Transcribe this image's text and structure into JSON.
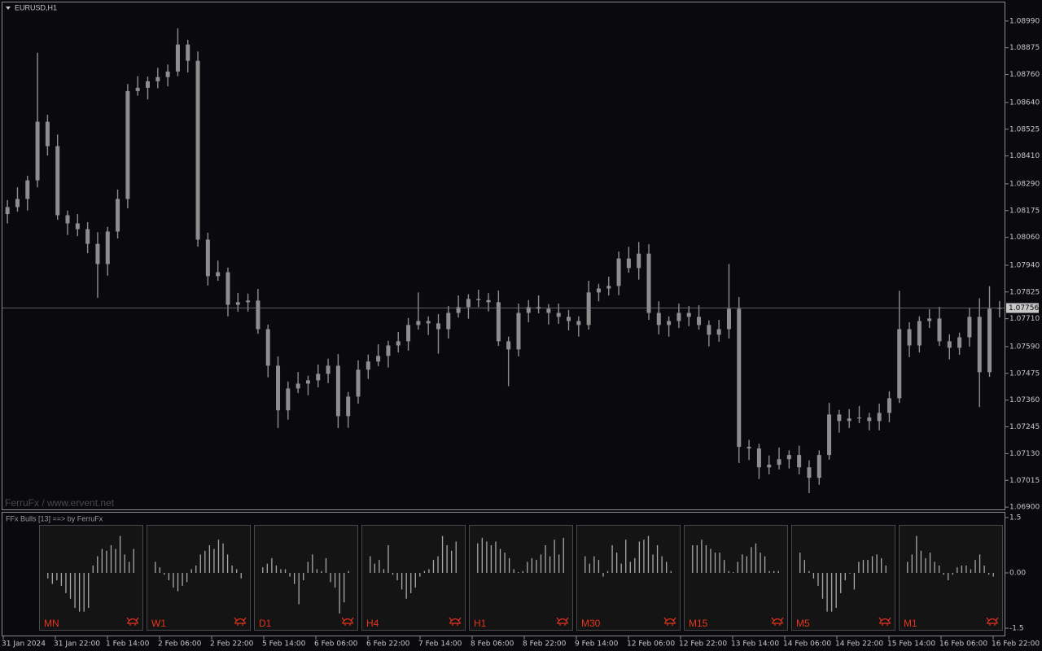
{
  "chart_data": [
    {
      "type": "candlestick",
      "title": "EURUSD,H1",
      "watermark": "FerruFx / www.ervent.net",
      "color": "#8e8e8e",
      "current_price": 1.07756,
      "ylim": [
        1.0689,
        1.0907
      ],
      "yticks": [
        {
          "value": 1.069,
          "label": "1.06900"
        },
        {
          "value": 1.07015,
          "label": "1.07015"
        },
        {
          "value": 1.0713,
          "label": "1.07130"
        },
        {
          "value": 1.07245,
          "label": "1.07245"
        },
        {
          "value": 1.0736,
          "label": "1.07360"
        },
        {
          "value": 1.07475,
          "label": "1.07475"
        },
        {
          "value": 1.0759,
          "label": "1.07590"
        },
        {
          "value": 1.0771,
          "label": "1.07710"
        },
        {
          "value": 1.07825,
          "label": "1.07825"
        },
        {
          "value": 1.0794,
          "label": "1.07940"
        },
        {
          "value": 1.0806,
          "label": "1.08060"
        },
        {
          "value": 1.08175,
          "label": "1.08175"
        },
        {
          "value": 1.0829,
          "label": "1.08290"
        },
        {
          "value": 1.0841,
          "label": "1.08410"
        },
        {
          "value": 1.08525,
          "label": "1.08525"
        },
        {
          "value": 1.0864,
          "label": "1.08640"
        },
        {
          "value": 1.0876,
          "label": "1.08760"
        },
        {
          "value": 1.08875,
          "label": "1.08875"
        },
        {
          "value": 1.0899,
          "label": "1.08990"
        }
      ],
      "x_labels": [
        "31 Jan 2024",
        "31 Jan 22:00",
        "1 Feb 14:00",
        "2 Feb 06:00",
        "2 Feb 22:00",
        "5 Feb 14:00",
        "6 Feb 06:00",
        "6 Feb 22:00",
        "7 Feb 14:00",
        "8 Feb 06:00",
        "8 Feb 22:00",
        "9 Feb 14:00",
        "12 Feb 06:00",
        "12 Feb 22:00",
        "13 Feb 14:00",
        "14 Feb 06:00",
        "14 Feb 22:00",
        "15 Feb 14:00",
        "16 Feb 06:00",
        "16 Feb 22:00"
      ],
      "open": [
        1.0816,
        1.0819,
        1.08225,
        1.08305,
        1.08557,
        1.08452,
        1.08155,
        1.0812,
        1.08095,
        1.08032,
        1.07945,
        1.08085,
        1.08225,
        1.08689,
        1.08703,
        1.08731,
        1.08749,
        1.08773,
        1.08889,
        1.08819,
        1.0805,
        1.07893,
        1.0791,
        1.0777,
        1.07781,
        1.07788,
        1.07665,
        1.07508,
        1.07316,
        1.0741,
        1.07431,
        1.07445,
        1.07473,
        1.07508,
        1.07291,
        1.07375,
        1.07491,
        1.07526,
        1.0755,
        1.07595,
        1.07613,
        1.07683,
        1.077,
        1.0769,
        1.07665,
        1.07735,
        1.0776,
        1.07795,
        1.0779,
        1.07781,
        1.07613,
        1.07578,
        1.07735,
        1.0776,
        1.07753,
        1.07735,
        1.07718,
        1.077,
        1.07683,
        1.07823,
        1.0784,
        1.07851,
        1.07969,
        1.07928,
        1.0799,
        1.07735,
        1.07683,
        1.077,
        1.07735,
        1.07718,
        1.07683,
        1.07641,
        1.07665,
        1.07753,
        1.07159,
        1.07152,
        1.07071,
        1.07082,
        1.07106,
        1.07124,
        1.07071,
        1.07026,
        1.07124,
        1.07298,
        1.0727,
        1.07281,
        1.07285,
        1.0727,
        1.07305,
        1.07368,
        1.07665,
        1.07595,
        1.077,
        1.07711,
        1.07613,
        1.07585,
        1.0763,
        1.07718,
        1.0748,
        1.07753
      ],
      "high": [
        1.0822,
        1.08275,
        1.08325,
        1.08854,
        1.08587,
        1.08502,
        1.08175,
        1.0816,
        1.08125,
        1.08082,
        1.08105,
        1.08265,
        1.08719,
        1.08753,
        1.08751,
        1.08789,
        1.08803,
        1.08959,
        1.08909,
        1.08859,
        1.0808,
        1.0796,
        1.0793,
        1.07821,
        1.07818,
        1.07838,
        1.07685,
        1.07548,
        1.0744,
        1.07481,
        1.07465,
        1.07513,
        1.07538,
        1.07558,
        1.07395,
        1.07531,
        1.07556,
        1.076,
        1.07615,
        1.07653,
        1.07713,
        1.07823,
        1.0772,
        1.0773,
        1.07765,
        1.0781,
        1.07815,
        1.07835,
        1.0782,
        1.07831,
        1.07633,
        1.07775,
        1.0779,
        1.0781,
        1.07773,
        1.07775,
        1.07748,
        1.0772,
        1.07873,
        1.0786,
        1.07891,
        1.07999,
        1.08019,
        1.0804,
        1.0803,
        1.07785,
        1.0772,
        1.07775,
        1.07765,
        1.07768,
        1.07703,
        1.07705,
        1.07945,
        1.07803,
        1.07189,
        1.07172,
        1.07122,
        1.07156,
        1.07144,
        1.07164,
        1.07101,
        1.07144,
        1.07348,
        1.07318,
        1.07321,
        1.07335,
        1.07305,
        1.07345,
        1.07398,
        1.0783,
        1.07695,
        1.0772,
        1.07751,
        1.07761,
        1.07643,
        1.0765,
        1.07758,
        1.07798,
        1.0785,
        1.07786
      ],
      "low": [
        1.0812,
        1.0817,
        1.08175,
        1.08275,
        1.08412,
        1.08135,
        1.0807,
        1.08065,
        1.07992,
        1.078,
        1.07895,
        1.08055,
        1.08185,
        1.08669,
        1.08653,
        1.08701,
        1.08709,
        1.08753,
        1.08769,
        1.0802,
        1.07853,
        1.07873,
        1.0772,
        1.0774,
        1.07741,
        1.07645,
        1.07458,
        1.0724,
        1.07276,
        1.0739,
        1.07381,
        1.07415,
        1.07433,
        1.0724,
        1.07241,
        1.07345,
        1.07451,
        1.07506,
        1.075,
        1.07565,
        1.07573,
        1.07663,
        1.0764,
        1.0756,
        1.07625,
        1.07715,
        1.0771,
        1.0776,
        1.07741,
        1.07593,
        1.0742,
        1.07548,
        1.07695,
        1.07733,
        1.07685,
        1.07688,
        1.0766,
        1.07633,
        1.07663,
        1.07785,
        1.0781,
        1.07811,
        1.07908,
        1.07878,
        1.07705,
        1.07643,
        1.07633,
        1.0767,
        1.07678,
        1.07663,
        1.07591,
        1.07611,
        1.07625,
        1.0709,
        1.07102,
        1.07021,
        1.07041,
        1.07062,
        1.07066,
        1.07041,
        1.0696,
        1.06996,
        1.07104,
        1.0722,
        1.0724,
        1.07261,
        1.0723,
        1.0723,
        1.07265,
        1.07348,
        1.07545,
        1.07565,
        1.0767,
        1.07593,
        1.07535,
        1.07555,
        1.0759,
        1.0733,
        1.0746,
        1.07716
      ],
      "close": [
        1.0819,
        1.08225,
        1.08305,
        1.08557,
        1.08452,
        1.08155,
        1.0812,
        1.08095,
        1.08032,
        1.07945,
        1.08085,
        1.08225,
        1.08689,
        1.08703,
        1.08731,
        1.08749,
        1.08773,
        1.08889,
        1.08819,
        1.0805,
        1.07893,
        1.0791,
        1.0777,
        1.07781,
        1.07788,
        1.07665,
        1.07508,
        1.07316,
        1.0741,
        1.07431,
        1.07445,
        1.07473,
        1.07508,
        1.07291,
        1.07375,
        1.07491,
        1.07526,
        1.0755,
        1.07595,
        1.07613,
        1.07683,
        1.077,
        1.0769,
        1.07665,
        1.07735,
        1.0776,
        1.07795,
        1.0779,
        1.07781,
        1.07613,
        1.07578,
        1.07735,
        1.0776,
        1.07753,
        1.07735,
        1.07718,
        1.077,
        1.07683,
        1.07823,
        1.0784,
        1.07851,
        1.07969,
        1.07928,
        1.0799,
        1.07735,
        1.07683,
        1.077,
        1.07735,
        1.07718,
        1.07683,
        1.07641,
        1.07665,
        1.07753,
        1.07159,
        1.07152,
        1.07071,
        1.07082,
        1.07106,
        1.07124,
        1.07071,
        1.07026,
        1.07124,
        1.07298,
        1.0727,
        1.07281,
        1.07285,
        1.0727,
        1.07305,
        1.07368,
        1.07665,
        1.07595,
        1.077,
        1.07711,
        1.07613,
        1.07585,
        1.0763,
        1.07718,
        1.0748,
        1.07753,
        1.07756
      ]
    },
    {
      "type": "bar",
      "title": "FFx Bulls [13] ==> by FerruFx",
      "color": "#a8a8a8",
      "label_color": "#e8331c",
      "ylim": [
        -1.5,
        1.5
      ],
      "yticks": [
        1.5,
        {
          "value": 0,
          "label": "0.00"
        },
        -1.5
      ],
      "panels": [
        {
          "name": "MN",
          "values": [
            -0.15,
            -0.3,
            -0.2,
            -0.35,
            -0.55,
            -0.7,
            -0.95,
            -1.05,
            -1.05,
            -0.95,
            0.2,
            0.45,
            0.65,
            0.6,
            0.75,
            0.65,
            1.0,
            0.5,
            0.3,
            0.65
          ]
        },
        {
          "name": "W1",
          "values": [
            0.3,
            0.15,
            -0.05,
            -0.2,
            -0.4,
            -0.5,
            -0.35,
            -0.25,
            0.1,
            0.2,
            0.5,
            0.6,
            0.75,
            0.65,
            0.9,
            0.8,
            0.5,
            0.2,
            0.1,
            -0.15
          ]
        },
        {
          "name": "D1",
          "values": [
            0.15,
            0.25,
            0.4,
            0.2,
            0.1,
            0.1,
            -0.1,
            -0.3,
            -0.85,
            -0.2,
            0.3,
            0.5,
            0.1,
            0.05,
            0.4,
            -0.25,
            -0.4,
            -1.1,
            -0.8,
            0.05
          ]
        },
        {
          "name": "H4",
          "values": [
            0.45,
            0.25,
            0.35,
            0.1,
            0.75,
            -0.05,
            -0.2,
            -0.45,
            -0.7,
            -0.55,
            -0.4,
            -0.1,
            0.05,
            0.1,
            0.35,
            0.45,
            1.0,
            0.75,
            0.6,
            0.85
          ]
        },
        {
          "name": "H1",
          "values": [
            0.8,
            0.95,
            0.85,
            0.75,
            0.85,
            0.65,
            0.55,
            0.4,
            0.1,
            0.02,
            0.05,
            0.3,
            0.4,
            0.35,
            0.5,
            0.75,
            0.45,
            0.9,
            0.5,
            0.95
          ]
        },
        {
          "name": "M30",
          "values": [
            0.45,
            0.25,
            0.45,
            0.35,
            -0.1,
            0.05,
            0.75,
            0.55,
            0.25,
            0.9,
            0.3,
            0.4,
            0.85,
            0.9,
            1.0,
            0.5,
            0.75,
            0.45,
            0.3,
            0.05
          ]
        },
        {
          "name": "M15",
          "values": [
            0.75,
            0.75,
            0.9,
            0.75,
            0.65,
            0.55,
            0.55,
            0.35,
            0.05,
            0.02,
            0.3,
            0.5,
            0.45,
            0.7,
            0.8,
            0.55,
            0.45,
            0.05,
            0.05,
            0.05
          ]
        },
        {
          "name": "M5",
          "values": [
            0.55,
            0.35,
            0.05,
            -0.15,
            -0.35,
            -0.7,
            -1.05,
            -1.05,
            -0.95,
            -0.55,
            -0.2,
            -0.02,
            -0.45,
            0.3,
            0.35,
            0.35,
            0.45,
            0.5,
            0.4,
            0.2
          ]
        },
        {
          "name": "M1",
          "values": [
            0.3,
            0.5,
            1.0,
            0.6,
            0.4,
            0.55,
            0.3,
            0.2,
            -0.05,
            -0.2,
            -0.05,
            0.15,
            0.2,
            0.2,
            0.1,
            0.35,
            0.5,
            0.2,
            -0.05,
            -0.1
          ]
        }
      ]
    }
  ]
}
